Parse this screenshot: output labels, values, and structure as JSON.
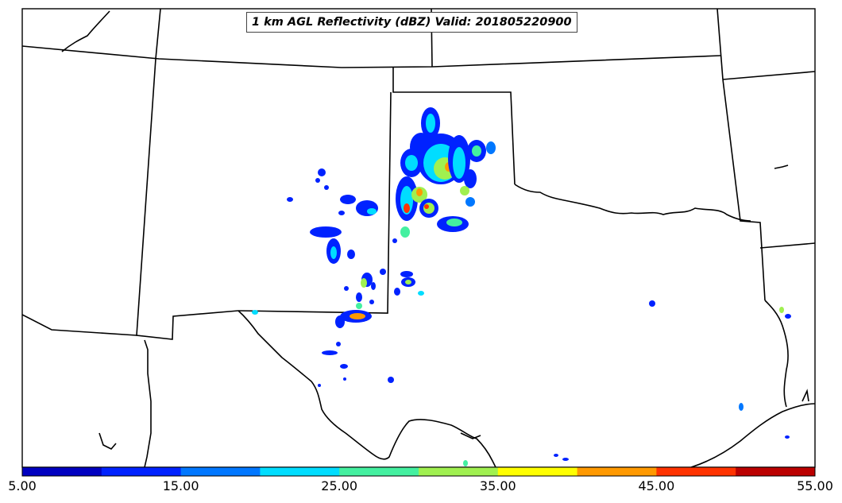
{
  "title": "1 km AGL Reflectivity (dBZ) Valid: 201805220900",
  "colorbar": {
    "tick_labels": [
      "5.00",
      "15.00",
      "25.00",
      "35.00",
      "45.00",
      "55.00"
    ],
    "colors": [
      "#0000c0",
      "#0022ff",
      "#0077ff",
      "#00ddff",
      "#44f0a0",
      "#a0f050",
      "#ffff00",
      "#ff9900",
      "#ff3300",
      "#bb0000"
    ]
  },
  "map": {
    "background": "#ffffff",
    "boundary_color": "#000000",
    "region": "Southern Plains (Texas, Oklahoma, surrounding states)"
  }
}
